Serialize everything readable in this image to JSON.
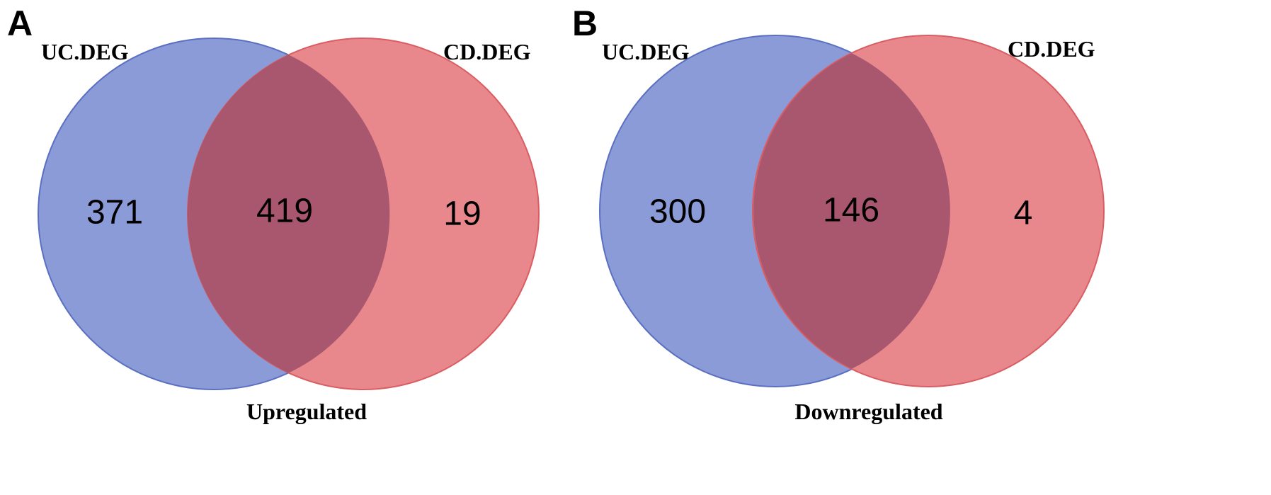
{
  "colors": {
    "uc_fill": "#8a9bd8",
    "uc_stroke": "#5b6fc2",
    "cd_fill": "#e8888c",
    "cd_stroke": "#d95d62",
    "overlap_fill": "#a9566f"
  },
  "panels": [
    {
      "letter": "A",
      "set_left_label": "UC.DEG",
      "set_right_label": "CD.DEG",
      "only_left": "371",
      "overlap": "419",
      "only_right": "19",
      "caption": "Upregulated"
    },
    {
      "letter": "B",
      "set_left_label": "UC.DEG",
      "set_right_label": "CD.DEG",
      "only_left": "300",
      "overlap": "146",
      "only_right": "4",
      "caption": "Downregulated"
    }
  ]
}
